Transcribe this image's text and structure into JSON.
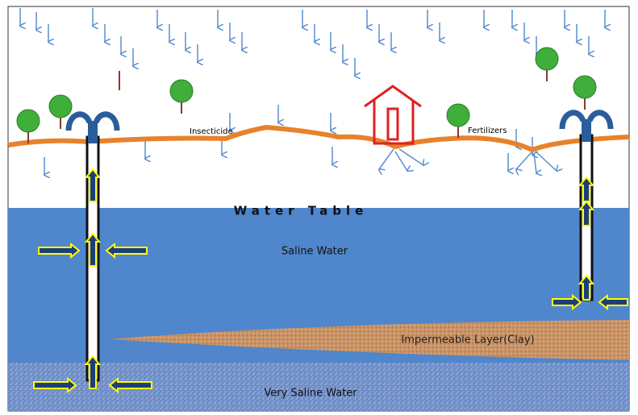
{
  "labels": {
    "insecticide": "Insecticide",
    "fertilizers": "Fertilizers",
    "water_table": "Water Table",
    "saline_water": "Saline Water",
    "clay": "Impermeable Layer(Clay)",
    "very_saline": "Very Saline Water"
  }
}
